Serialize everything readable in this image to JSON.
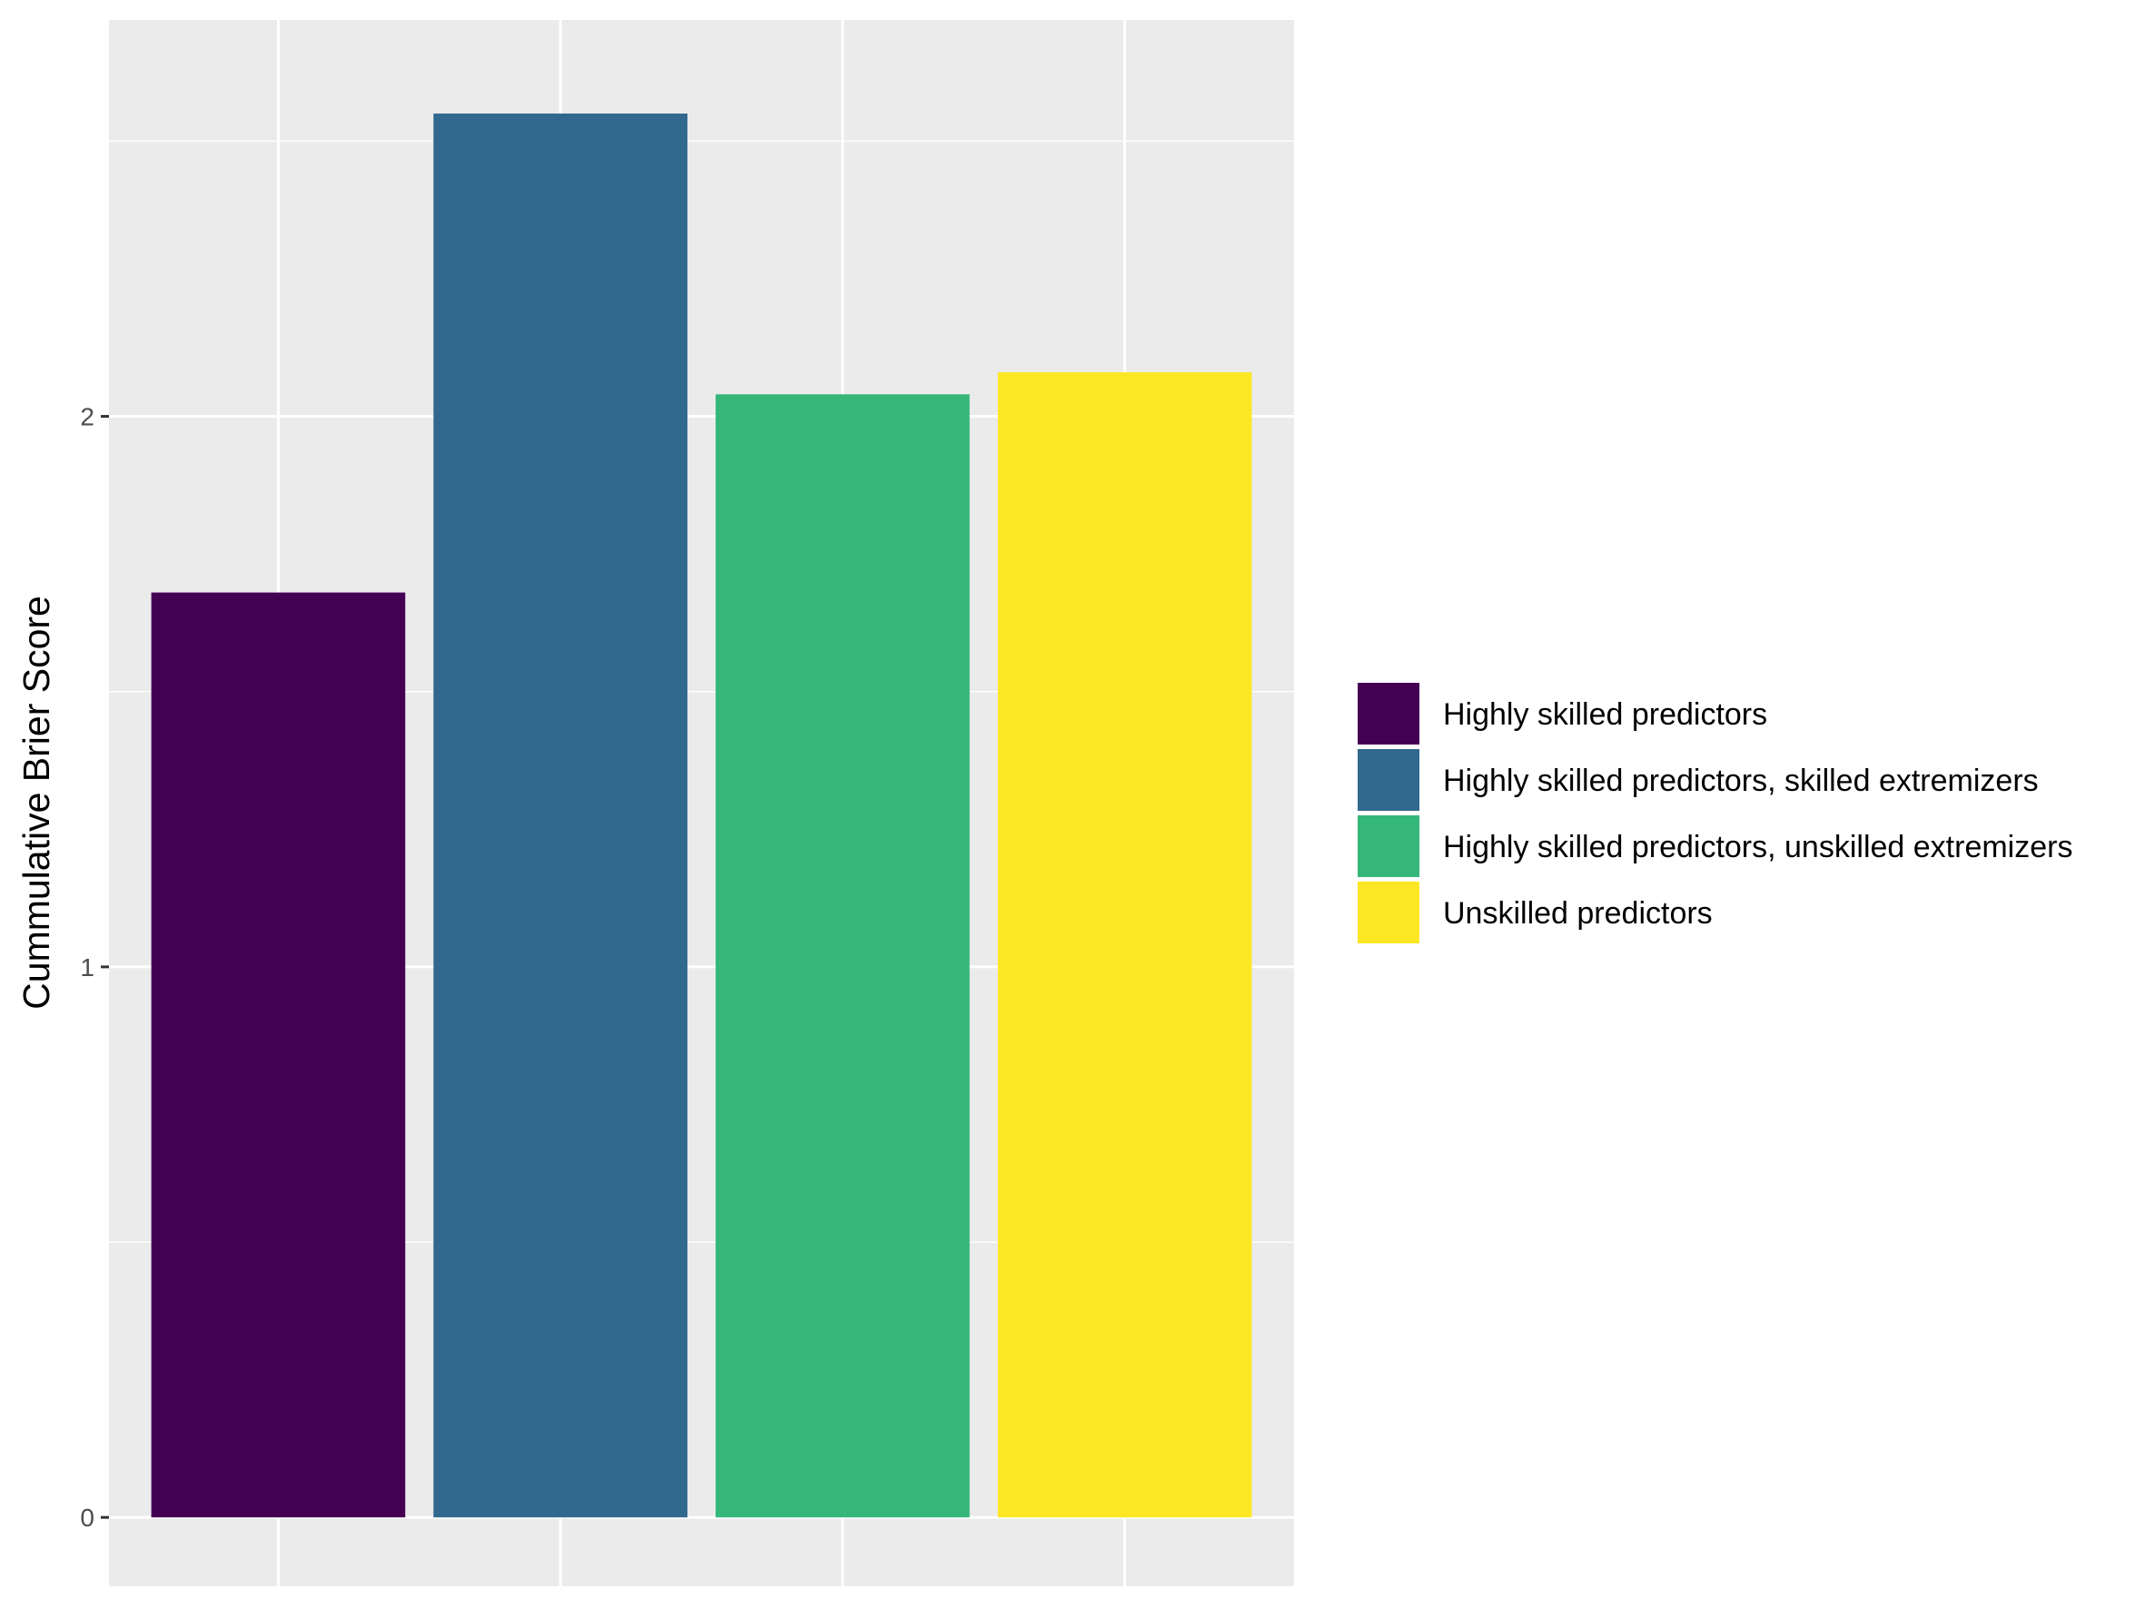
{
  "chart_data": {
    "type": "bar",
    "title": "",
    "xlabel": "",
    "ylabel": "Cummulative Brier Score",
    "categories": [
      "Highly skilled predictors",
      "Highly skilled predictors, skilled extremizers",
      "Highly skilled predictors, unskilled extremizers",
      "Unskilled predictors"
    ],
    "values": [
      1.68,
      2.55,
      2.04,
      2.08
    ],
    "colors": [
      "#440154",
      "#31688E",
      "#35B779",
      "#FDE725"
    ],
    "ylim": [
      -0.125,
      2.72
    ],
    "yticks": [
      0,
      1,
      2
    ],
    "grid": true,
    "legend": "right",
    "style": {
      "panel_background": "#EBEBEB",
      "grid_color": "#FFFFFF",
      "tick_text_color": "#4D4D4D"
    }
  }
}
